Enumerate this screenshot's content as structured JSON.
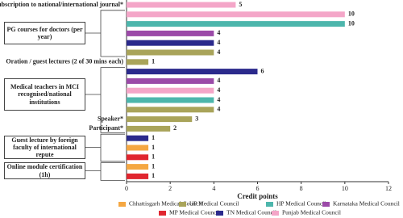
{
  "chart_data": {
    "type": "bar",
    "orientation": "horizontal",
    "categories": [
      "Subscription to national/international journal*",
      null,
      null,
      null,
      null,
      null,
      "Oration / guest lectures (2 of 30 mins each)",
      null,
      null,
      null,
      null,
      null,
      "Speaker*",
      "Participant*",
      null,
      null,
      null,
      null,
      null
    ],
    "values": [
      5,
      10,
      10,
      4,
      4,
      4,
      1,
      6,
      4,
      4,
      4,
      4,
      3,
      2,
      1,
      1,
      1,
      1,
      1
    ],
    "colors": [
      "#f4a6c8",
      "#f4a6c8",
      "#4db6ac",
      "#9b4aa8",
      "#2b2a8c",
      "#a9a45a",
      "#a9a45a",
      "#2b2a8c",
      "#9b4aa8",
      "#f4a6c8",
      "#4db6ac",
      "#a9a45a",
      "#a9a45a",
      "#a9a45a",
      "#2b2a8c",
      "#f5a742",
      "#e0262f",
      "#f5a742",
      "#e0262f"
    ],
    "groups": [
      "PG courses for doctors (per year)",
      "Medical teachers in MCI recognised/national institutions",
      "Guest lecture by foreign faculty of international repute",
      "Online module certification (1h)"
    ],
    "xlabel": "Credit points",
    "xlim": [
      0,
      12
    ],
    "xticks": [
      0,
      2,
      4,
      6,
      8,
      10,
      12
    ],
    "series": [
      {
        "name": "Chhattisgarh Medical Council",
        "color": "#f5a742"
      },
      {
        "name": "UP Medical Council",
        "color": "#a9a45a"
      },
      {
        "name": "HP Medical Council",
        "color": "#4db6ac"
      },
      {
        "name": "Karnataka Medical Council",
        "color": "#9b4aa8"
      },
      {
        "name": "MP Medical Council",
        "color": "#e0262f"
      },
      {
        "name": "TN Medical Council",
        "color": "#2b2a8c"
      },
      {
        "name": "Punjab Medical Council",
        "color": "#f4a6c8"
      }
    ]
  }
}
